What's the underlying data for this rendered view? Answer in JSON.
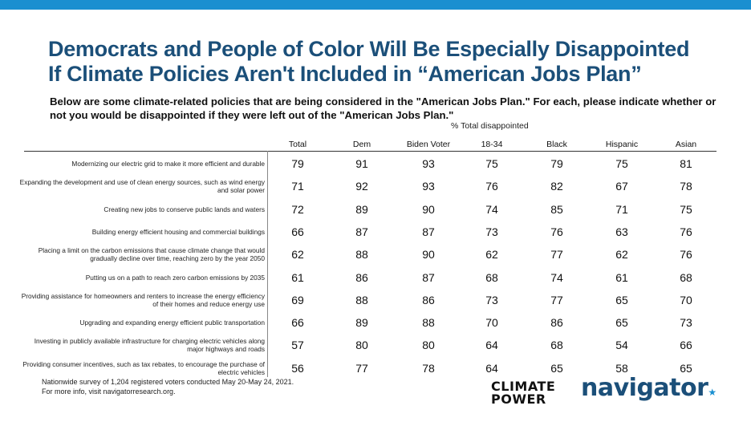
{
  "title_line1": "Democrats and People of Color Will Be Especially Disappointed",
  "title_line2": "If Climate Policies Aren't Included in “American Jobs Plan”",
  "subtitle": "Below are some climate-related policies that are being considered in the \"American Jobs Plan.\" For each, please indicate whether or not you would be disappointed if they were left out of the \"American Jobs Plan.\"",
  "chart_data": {
    "type": "table",
    "unit_label": "% Total disappointed",
    "columns": [
      "Total",
      "Dem",
      "Biden Voter",
      "18-34",
      "Black",
      "Hispanic",
      "Asian"
    ],
    "rows": [
      {
        "label": "Modernizing our electric grid to make it more efficient and durable",
        "values": [
          79,
          91,
          93,
          75,
          79,
          75,
          81
        ]
      },
      {
        "label": "Expanding the development and use of clean energy sources, such as wind energy and solar power",
        "values": [
          71,
          92,
          93,
          76,
          82,
          67,
          78
        ]
      },
      {
        "label": "Creating new jobs to conserve public lands and waters",
        "values": [
          72,
          89,
          90,
          74,
          85,
          71,
          75
        ]
      },
      {
        "label": "Building energy efficient housing and commercial buildings",
        "values": [
          66,
          87,
          87,
          73,
          76,
          63,
          76
        ]
      },
      {
        "label": "Placing a limit on the carbon emissions that cause climate change that would gradually decline over time, reaching zero by the year 2050",
        "values": [
          62,
          88,
          90,
          62,
          77,
          62,
          76
        ]
      },
      {
        "label": "Putting us on a path to reach zero carbon emissions by 2035",
        "values": [
          61,
          86,
          87,
          68,
          74,
          61,
          68
        ]
      },
      {
        "label": "Providing assistance for homeowners and renters to increase the energy efficiency of their homes and reduce energy use",
        "values": [
          69,
          88,
          86,
          73,
          77,
          65,
          70
        ]
      },
      {
        "label": "Upgrading and expanding energy efficient public transportation",
        "values": [
          66,
          89,
          88,
          70,
          86,
          65,
          73
        ]
      },
      {
        "label": "Investing in publicly available infrastructure for charging electric vehicles along major highways and roads",
        "values": [
          57,
          80,
          80,
          64,
          68,
          54,
          66
        ]
      },
      {
        "label": "Providing consumer incentives, such as tax rebates, to encourage the purchase of electric vehicles",
        "values": [
          56,
          77,
          78,
          64,
          65,
          58,
          65
        ]
      }
    ]
  },
  "footnote_line1": "Nationwide survey of 1,204 registered voters conducted May 20-May 24, 2021.",
  "footnote_line2": "For more info, visit navigatorresearch.org.",
  "logo_climate_power": [
    "CLIMATE",
    "POWER"
  ],
  "logo_navigator": "navigator",
  "colors": {
    "accent_bar": "#1a8fd0",
    "title": "#1b4f79"
  }
}
